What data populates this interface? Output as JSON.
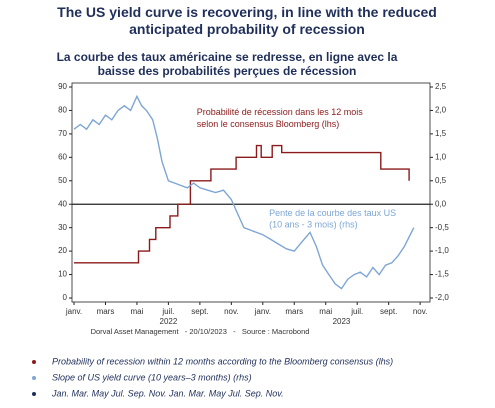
{
  "chart_data": {
    "type": "line",
    "title": "The US yield curve is recovering, in line with the reduced anticipated probability of recession",
    "subtitle": "La courbe des taux américaine se redresse, en ligne avec la baisse des probabilités perçues de récession",
    "source": "Dorval Asset Management   - 20/10/2023   -   Source : Macrobond",
    "x_note": "Jan. Mar. May Jul. Sep. Nov. Jan. Mar. May Jul. Sep. Nov.",
    "xlim": [
      0,
      22.5
    ],
    "xticks": [
      {
        "value": 0,
        "label": "janv."
      },
      {
        "value": 2,
        "label": "mars"
      },
      {
        "value": 4,
        "label": "mai"
      },
      {
        "value": 6,
        "label": "juil."
      },
      {
        "value": 8,
        "label": "sept."
      },
      {
        "value": 10,
        "label": "nov."
      },
      {
        "value": 12,
        "label": "janv."
      },
      {
        "value": 14,
        "label": "mars"
      },
      {
        "value": 16,
        "label": "mai"
      },
      {
        "value": 18,
        "label": "juil."
      },
      {
        "value": 20,
        "label": "sept."
      },
      {
        "value": 22,
        "label": "nov."
      }
    ],
    "x_groups": [
      {
        "value": 6,
        "label": "2022"
      },
      {
        "value": 17,
        "label": "2023"
      }
    ],
    "ylim": [
      0,
      90
    ],
    "yticks": [
      0,
      10,
      20,
      30,
      40,
      50,
      60,
      70,
      80,
      90
    ],
    "y2lim": [
      -2.0,
      2.5
    ],
    "y2ticks": [
      {
        "value": 2.5,
        "label": "2,5"
      },
      {
        "value": 2.0,
        "label": "2,0"
      },
      {
        "value": 1.5,
        "label": "1,5"
      },
      {
        "value": 1.0,
        "label": "1,0"
      },
      {
        "value": 0.5,
        "label": "0,5"
      },
      {
        "value": 0.0,
        "label": "0,0"
      },
      {
        "value": -0.5,
        "label": "-0,5"
      },
      {
        "value": -1.0,
        "label": "-1,0"
      },
      {
        "value": -1.5,
        "label": "-1,5"
      },
      {
        "value": -2.0,
        "label": "-2,0"
      }
    ],
    "annotations": [
      {
        "text": "Probabilité de récession dans les 12 mois",
        "x": 7.8,
        "y": 79,
        "color": "#8b1a1a"
      },
      {
        "text": "selon le consensus Bloomberg (lhs)",
        "x": 7.8,
        "y": 74,
        "color": "#8b1a1a"
      },
      {
        "text": "Pente de la courbe des taux US",
        "x": 12.4,
        "y": -0.2,
        "color": "#7ea6d4"
      },
      {
        "text": "(10 ans - 3 mois) (rhs)",
        "x": 12.4,
        "y": -0.45,
        "color": "#7ea6d4"
      }
    ],
    "series": [
      {
        "name": "Probability of recession within 12 months according to the Bloomberg consensus (lhs)",
        "color": "#8b1a1a",
        "axis": "y",
        "x": [
          0,
          4.1,
          4.1,
          4.8,
          4.8,
          5.2,
          5.2,
          6.1,
          6.1,
          6.6,
          6.6,
          7.4,
          7.4,
          8.7,
          8.7,
          10.3,
          10.3,
          11.6,
          11.6,
          11.9,
          11.9,
          12.6,
          12.6,
          13.2,
          13.2,
          19.5,
          19.5,
          21.3,
          21.3
        ],
        "values": [
          15,
          15,
          20,
          20,
          25,
          25,
          30,
          30,
          35,
          35,
          40,
          40,
          50,
          50,
          55,
          55,
          60,
          60,
          65,
          65,
          60,
          60,
          65,
          65,
          62,
          62,
          55,
          55,
          50
        ]
      },
      {
        "name": "Slope of US yield curve (10 years–3 months) (rhs)",
        "color": "#7ea6d4",
        "axis": "y2",
        "x": [
          0,
          0.4,
          0.8,
          1.2,
          1.6,
          2.0,
          2.4,
          2.8,
          3.2,
          3.6,
          4.0,
          4.3,
          4.6,
          5.0,
          5.3,
          5.6,
          6.0,
          6.4,
          6.8,
          7.2,
          7.6,
          8.0,
          8.5,
          9.0,
          9.5,
          10.0,
          10.4,
          10.8,
          11.2,
          11.6,
          12.0,
          12.5,
          13.0,
          13.5,
          14.0,
          14.5,
          15.0,
          15.4,
          15.8,
          16.2,
          16.6,
          17.0,
          17.4,
          17.8,
          18.2,
          18.6,
          19.0,
          19.4,
          19.8,
          20.2,
          20.6,
          21.0,
          21.3,
          21.6
        ],
        "values": [
          1.6,
          1.7,
          1.6,
          1.8,
          1.7,
          1.9,
          1.8,
          2.0,
          2.1,
          2.0,
          2.3,
          2.1,
          2.0,
          1.8,
          1.4,
          0.9,
          0.5,
          0.45,
          0.4,
          0.35,
          0.45,
          0.35,
          0.3,
          0.25,
          0.3,
          0.1,
          -0.2,
          -0.5,
          -0.55,
          -0.6,
          -0.65,
          -0.75,
          -0.85,
          -0.95,
          -1.0,
          -0.8,
          -0.6,
          -0.9,
          -1.3,
          -1.5,
          -1.7,
          -1.8,
          -1.6,
          -1.5,
          -1.45,
          -1.55,
          -1.35,
          -1.5,
          -1.3,
          -1.25,
          -1.1,
          -0.9,
          -0.7,
          -0.5
        ]
      }
    ]
  }
}
